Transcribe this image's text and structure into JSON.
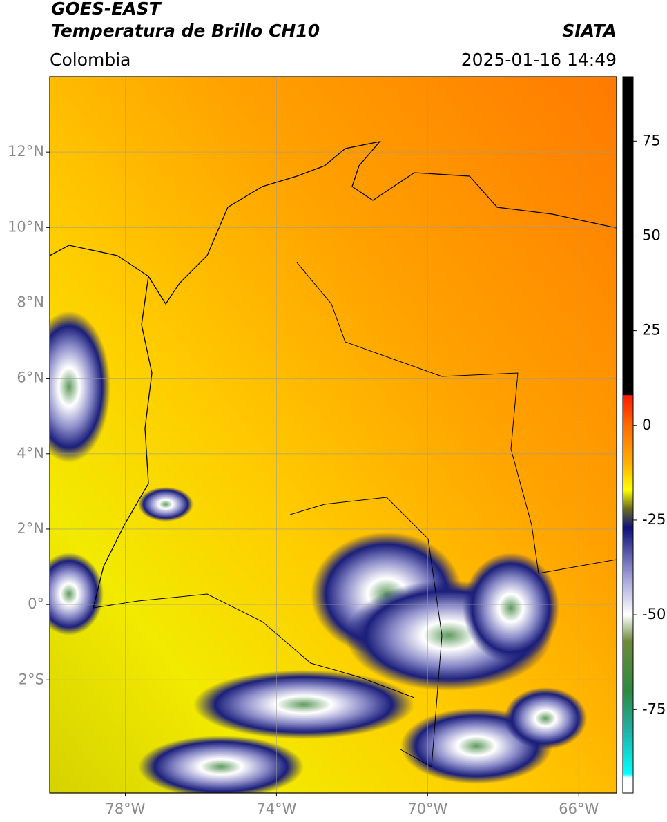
{
  "header": {
    "title": "GOES-EAST",
    "subtitle": "Temperatura de Brillo CH10",
    "source": "SIATA",
    "region": "Colombia",
    "timestamp": "2025-01-16 14:49"
  },
  "map": {
    "type": "map",
    "xlim": [
      -80,
      -65
    ],
    "ylim": [
      -5,
      14
    ],
    "xticks": [
      {
        "value": -78,
        "label": "78°W"
      },
      {
        "value": -74,
        "label": "74°W"
      },
      {
        "value": -70,
        "label": "70°W"
      },
      {
        "value": -66,
        "label": "66°W"
      }
    ],
    "yticks": [
      {
        "value": 12,
        "label": "12°N"
      },
      {
        "value": 10,
        "label": "10°N"
      },
      {
        "value": 8,
        "label": "8°N"
      },
      {
        "value": 6,
        "label": "6°N"
      },
      {
        "value": 4,
        "label": "4°N"
      },
      {
        "value": 2,
        "label": "2°N"
      },
      {
        "value": 0,
        "label": "0°"
      },
      {
        "value": -2,
        "label": "2°S"
      }
    ],
    "grid": true
  },
  "colorbar": {
    "lim": [
      -97,
      92
    ],
    "ticks": [
      75,
      50,
      25,
      0,
      -25,
      -50,
      -75
    ],
    "colormap": [
      {
        "value": 92,
        "color": "#000000"
      },
      {
        "value": 8,
        "color": "#000000"
      },
      {
        "value": 7.9,
        "color": "#ff1a00"
      },
      {
        "value": 0,
        "color": "#ff6a00"
      },
      {
        "value": -10,
        "color": "#ffb000"
      },
      {
        "value": -17,
        "color": "#ffff00"
      },
      {
        "value": -22,
        "color": "#6b6b20"
      },
      {
        "value": -27,
        "color": "#10107a"
      },
      {
        "value": -40,
        "color": "#a0a0d8"
      },
      {
        "value": -50,
        "color": "#ffffff"
      },
      {
        "value": -57,
        "color": "#6e8a3a"
      },
      {
        "value": -70,
        "color": "#2e8a40"
      },
      {
        "value": -80,
        "color": "#20b0a0"
      },
      {
        "value": -92,
        "color": "#00ffff"
      },
      {
        "value": -93,
        "color": "#ffffff"
      },
      {
        "value": -97,
        "color": "#ffffff"
      }
    ]
  }
}
